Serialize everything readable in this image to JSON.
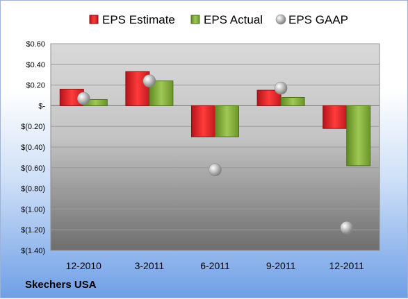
{
  "chart_data": {
    "type": "bar",
    "categories": [
      "12-2010",
      "3-2011",
      "6-2011",
      "9-2011",
      "12-2011"
    ],
    "series": [
      {
        "name": "EPS Estimate",
        "kind": "bar",
        "color": "#e0201f",
        "values": [
          0.16,
          0.33,
          -0.3,
          0.15,
          -0.22
        ]
      },
      {
        "name": "EPS Actual",
        "kind": "bar",
        "color": "#86b039",
        "values": [
          0.06,
          0.24,
          -0.3,
          0.08,
          -0.58
        ]
      },
      {
        "name": "EPS GAAP",
        "kind": "point",
        "color": "#a8a8a8",
        "values": [
          0.07,
          0.24,
          -0.62,
          0.17,
          -1.18
        ]
      }
    ],
    "ylim": [
      -1.4,
      0.6
    ],
    "ytick_values": [
      0.6,
      0.4,
      0.2,
      0.0,
      -0.2,
      -0.4,
      -0.6,
      -0.8,
      -1.0,
      -1.2,
      -1.4
    ],
    "ytick_labels": [
      "$0.60",
      "$0.40",
      "$0.20",
      "$-",
      "$(0.20)",
      "$(0.40)",
      "$(0.60)",
      "$(0.80)",
      "$(1.00)",
      "$(1.20)",
      "$(1.40)"
    ],
    "grid": true,
    "legend": "top"
  },
  "company": "Skechers USA"
}
